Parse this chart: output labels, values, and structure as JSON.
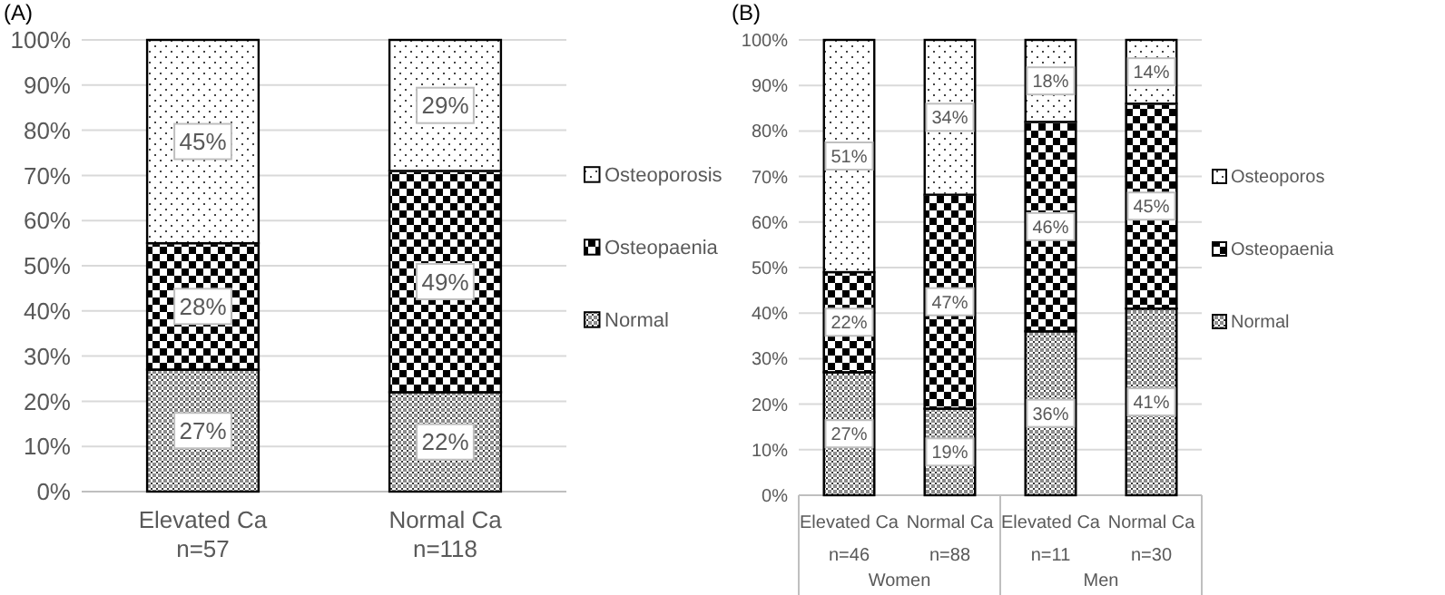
{
  "chart_data": [
    {
      "type": "bar",
      "title": "(A)",
      "stacked": true,
      "categories": [
        "Elevated Ca\nn=57",
        "Normal Ca\nn=118"
      ],
      "series": [
        {
          "name": "Normal",
          "color": "#8c8c8c",
          "values": [
            27,
            22
          ],
          "value_labels": [
            "27%",
            "22%"
          ]
        },
        {
          "name": "Osteopaenia",
          "color": "#000000",
          "values": [
            28,
            49
          ],
          "value_labels": [
            "28%",
            "49%"
          ]
        },
        {
          "name": "Osteoporosis",
          "color": "#ffffff",
          "values": [
            45,
            29
          ],
          "value_labels": [
            "45%",
            "29%"
          ]
        }
      ],
      "ylim": [
        0,
        100
      ],
      "yticks": [
        {
          "value": 0,
          "label": "0%"
        },
        {
          "value": 10,
          "label": "10%"
        },
        {
          "value": 20,
          "label": "20%"
        },
        {
          "value": 30,
          "label": "30%"
        },
        {
          "value": 40,
          "label": "40%"
        },
        {
          "value": 50,
          "label": "50%"
        },
        {
          "value": 60,
          "label": "60%"
        },
        {
          "value": 70,
          "label": "70%"
        },
        {
          "value": 80,
          "label": "80%"
        },
        {
          "value": 90,
          "label": "90%"
        },
        {
          "value": 100,
          "label": "100%"
        }
      ],
      "grid": "y",
      "legend": "right"
    },
    {
      "type": "bar",
      "title": "(B)",
      "stacked": true,
      "categories": [
        "Elevated Ca\nn=46",
        "Normal Ca\nn=88",
        "Elevated Ca\nn=11",
        "Normal Ca\nn=30"
      ],
      "series": [
        {
          "name": "Normal",
          "color": "#8c8c8c",
          "values": [
            27,
            19,
            36,
            41
          ],
          "value_labels": [
            "27%",
            "19%",
            "36%",
            "41%"
          ]
        },
        {
          "name": "Osteopaenia",
          "color": "#000000",
          "values": [
            22,
            47,
            46,
            45
          ],
          "value_labels": [
            "22%",
            "47%",
            "46%",
            "45%"
          ]
        },
        {
          "name": "Osteoporos",
          "color": "#ffffff",
          "values": [
            51,
            34,
            18,
            14
          ],
          "value_labels": [
            "51%",
            "34%",
            "18%",
            "14%"
          ]
        }
      ],
      "annotations": [
        "Women",
        "Men"
      ],
      "ylim": [
        0,
        100
      ],
      "yticks": [
        {
          "value": 0,
          "label": "0%"
        },
        {
          "value": 10,
          "label": "10%"
        },
        {
          "value": 20,
          "label": "20%"
        },
        {
          "value": 30,
          "label": "30%"
        },
        {
          "value": 40,
          "label": "40%"
        },
        {
          "value": 50,
          "label": "50%"
        },
        {
          "value": 60,
          "label": "60%"
        },
        {
          "value": 70,
          "label": "70%"
        },
        {
          "value": 80,
          "label": "80%"
        },
        {
          "value": 90,
          "label": "90%"
        },
        {
          "value": 100,
          "label": "100%"
        }
      ],
      "grid": "y",
      "legend": "right"
    }
  ]
}
